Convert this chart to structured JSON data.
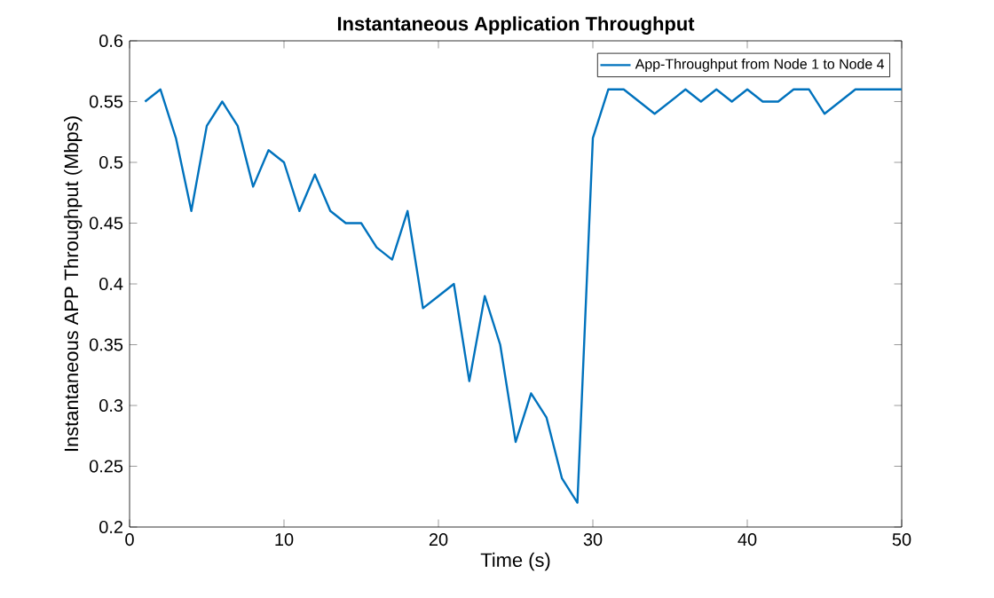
{
  "chart_data": {
    "type": "line",
    "title": "Instantaneous Application Throughput",
    "xlabel": "Time (s)",
    "ylabel": "Instantaneous APP Throughput (Mbps)",
    "x": [
      1,
      2,
      3,
      4,
      5,
      6,
      7,
      8,
      9,
      10,
      11,
      12,
      13,
      14,
      15,
      16,
      17,
      18,
      19,
      20,
      21,
      22,
      23,
      24,
      25,
      26,
      27,
      28,
      29,
      30,
      31,
      32,
      33,
      34,
      35,
      36,
      37,
      38,
      39,
      40,
      41,
      42,
      43,
      44,
      45,
      46,
      47,
      48,
      49,
      50
    ],
    "series": [
      {
        "name": "App-Throughput from Node 1 to Node 4",
        "color": "#0072bd",
        "values": [
          0.55,
          0.56,
          0.52,
          0.46,
          0.53,
          0.55,
          0.53,
          0.48,
          0.51,
          0.5,
          0.46,
          0.49,
          0.46,
          0.45,
          0.45,
          0.43,
          0.42,
          0.46,
          0.38,
          0.39,
          0.4,
          0.32,
          0.39,
          0.35,
          0.27,
          0.31,
          0.29,
          0.24,
          0.22,
          0.52,
          0.56,
          0.56,
          0.55,
          0.54,
          0.55,
          0.56,
          0.55,
          0.56,
          0.55,
          0.56,
          0.55,
          0.55,
          0.56,
          0.56,
          0.54,
          0.55,
          0.56,
          0.56,
          0.56,
          0.56
        ]
      }
    ],
    "xlim": [
      0,
      50
    ],
    "xticks": [
      0,
      10,
      20,
      30,
      40,
      50
    ],
    "ylim": [
      0.2,
      0.6
    ],
    "yticks": [
      0.2,
      0.25,
      0.3,
      0.35,
      0.4,
      0.45,
      0.5,
      0.55,
      0.6
    ],
    "legend": "top right",
    "grid": false,
    "marker": "none",
    "line_style": "solid"
  }
}
